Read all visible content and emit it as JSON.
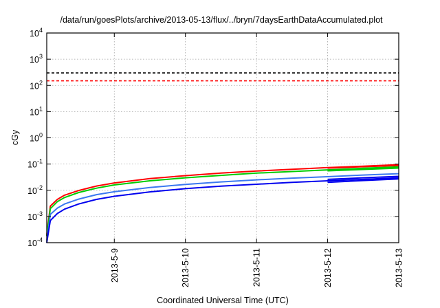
{
  "chart_data": {
    "type": "line",
    "title": "/data/run/goesPlots/archive/2013-05-13/flux/../bryn/7daysEarthDataAccumulated.plot",
    "xlabel": "Coordinated Universal Time (UTC)",
    "ylabel": "cGy",
    "y_scale": "log",
    "ylim": [
      0.0001,
      10000
    ],
    "y_ticks": [
      {
        "base": "10",
        "exp": "-4",
        "value": 0.0001
      },
      {
        "base": "10",
        "exp": "-3",
        "value": 0.001
      },
      {
        "base": "10",
        "exp": "-2",
        "value": 0.01
      },
      {
        "base": "10",
        "exp": "-1",
        "value": 0.1
      },
      {
        "base": "10",
        "exp": "0",
        "value": 1
      },
      {
        "base": "10",
        "exp": "1",
        "value": 10
      },
      {
        "base": "10",
        "exp": "2",
        "value": 100
      },
      {
        "base": "10",
        "exp": "3",
        "value": 1000
      },
      {
        "base": "10",
        "exp": "4",
        "value": 10000
      }
    ],
    "xlim": [
      8.05,
      13.0
    ],
    "x_ticks": [
      {
        "label": "2013-5-9",
        "value": 9
      },
      {
        "label": "2013-5-10",
        "value": 10
      },
      {
        "label": "2013-5-11",
        "value": 11
      },
      {
        "label": "2013-5-12",
        "value": 12
      },
      {
        "label": "2013-5-13",
        "value": 13
      }
    ],
    "grid": true,
    "reference_lines": [
      {
        "value": 300,
        "color": "#000000",
        "style": "dashed"
      },
      {
        "value": 150,
        "color": "#ff0000",
        "style": "dashed"
      }
    ],
    "series": [
      {
        "color": "#ff0000",
        "x": [
          8.05,
          8.1,
          8.2,
          8.3,
          8.5,
          8.75,
          9,
          9.5,
          10,
          10.5,
          11,
          11.5,
          12,
          12.5,
          13
        ],
        "y": [
          0.0002,
          0.0025,
          0.0045,
          0.0065,
          0.0098,
          0.0145,
          0.019,
          0.028,
          0.036,
          0.045,
          0.054,
          0.063,
          0.073,
          0.083,
          0.095
        ]
      },
      {
        "color": "#ff0000",
        "x": [
          12,
          12.5,
          13
        ],
        "y": [
          0.07,
          0.079,
          0.088
        ]
      },
      {
        "color": "#00cc00",
        "x": [
          8.05,
          8.1,
          8.2,
          8.3,
          8.5,
          8.75,
          9,
          9.5,
          10,
          10.5,
          11,
          11.5,
          12,
          12.5,
          13
        ],
        "y": [
          0.00018,
          0.002,
          0.0037,
          0.0053,
          0.0082,
          0.012,
          0.016,
          0.023,
          0.03,
          0.037,
          0.045,
          0.052,
          0.06,
          0.069,
          0.078
        ]
      },
      {
        "color": "#00cc00",
        "x": [
          12,
          12.5,
          13
        ],
        "y": [
          0.055,
          0.062,
          0.07
        ]
      },
      {
        "color": "#3a78f0",
        "x": [
          8.05,
          8.1,
          8.2,
          8.3,
          8.5,
          8.75,
          9,
          9.5,
          10,
          10.5,
          11,
          11.5,
          12,
          12.5,
          13
        ],
        "y": [
          0.00012,
          0.0012,
          0.0021,
          0.003,
          0.0046,
          0.0068,
          0.0088,
          0.0128,
          0.0168,
          0.0208,
          0.025,
          0.029,
          0.033,
          0.038,
          0.043
        ]
      },
      {
        "color": "#0000ee",
        "x": [
          8.05,
          8.1,
          8.2,
          8.3,
          8.5,
          8.75,
          9,
          9.5,
          10,
          10.5,
          11,
          11.5,
          12,
          12.5,
          13
        ],
        "y": [
          0.0001,
          0.0007,
          0.0013,
          0.0019,
          0.003,
          0.0045,
          0.0059,
          0.0087,
          0.0115,
          0.0143,
          0.017,
          0.02,
          0.023,
          0.026,
          0.03
        ]
      },
      {
        "color": "#0000ee",
        "x": [
          12,
          12.5,
          13
        ],
        "y": [
          0.026,
          0.03,
          0.034
        ]
      },
      {
        "color": "#0000ee",
        "x": [
          12,
          12.5,
          13
        ],
        "y": [
          0.02,
          0.0235,
          0.027
        ]
      }
    ]
  }
}
